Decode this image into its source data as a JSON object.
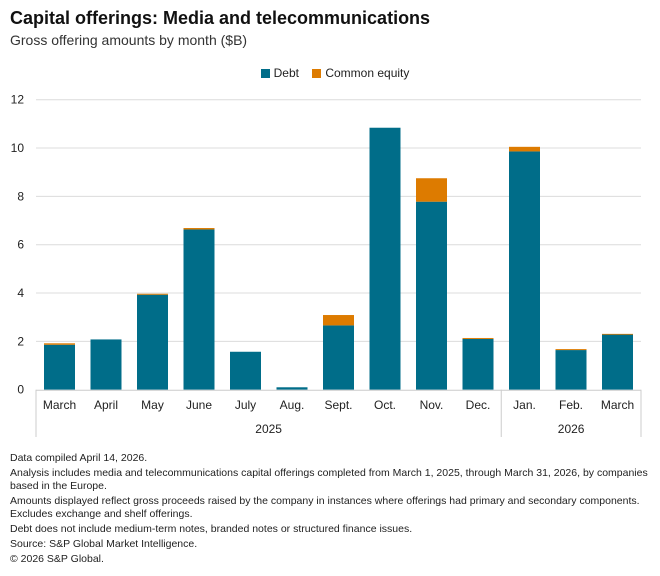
{
  "title": "Capital offerings: Media and telecommunications",
  "subtitle": "Gross offering amounts by month ($B)",
  "colors": {
    "debt": "#006d89",
    "equity": "#dd7b00",
    "grid": "#dcdcdc"
  },
  "chart_data": {
    "type": "bar",
    "stacked": true,
    "categories": [
      "March",
      "April",
      "May",
      "June",
      "July",
      "Aug.",
      "Sept.",
      "Oct.",
      "Nov.",
      "Dec.",
      "Jan.",
      "Feb.",
      "March"
    ],
    "year_groups": [
      {
        "label": "2025",
        "count": 10
      },
      {
        "label": "2026",
        "count": 3
      }
    ],
    "series": [
      {
        "name": "Debt",
        "values": [
          1.86,
          2.08,
          3.93,
          6.63,
          1.57,
          0.1,
          2.66,
          10.84,
          7.78,
          2.1,
          9.86,
          1.64,
          2.29
        ]
      },
      {
        "name": "Common equity",
        "values": [
          0.06,
          0,
          0.04,
          0.06,
          0,
          0,
          0.43,
          0,
          0.97,
          0.04,
          0.19,
          0.04,
          0.02
        ]
      }
    ],
    "ylim": [
      0,
      12
    ],
    "yticks": [
      "0",
      "2",
      "4",
      "6",
      "8",
      "10",
      "12"
    ],
    "grid": true,
    "legend": "top-center"
  },
  "notes": [
    "Data compiled April 14, 2026.",
    "Analysis includes media and telecommunications capital offerings completed from March 1, 2025, through March 31, 2026, by companies based in the Europe.",
    "Amounts displayed reflect gross proceeds raised by the company in instances where offerings had primary and secondary components. Excludes exchange and shelf offerings.",
    "Debt does not include medium-term notes, branded notes or structured finance issues.",
    "Source: S&P Global Market Intelligence.",
    "© 2026 S&P Global."
  ]
}
